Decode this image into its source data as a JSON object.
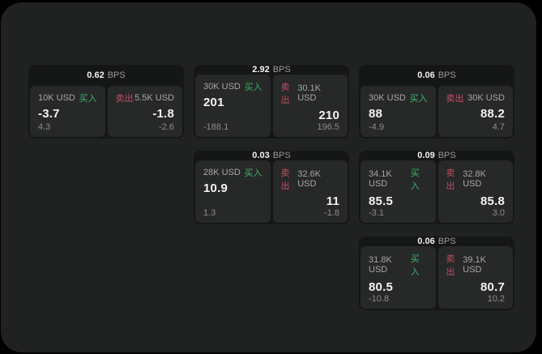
{
  "page": {
    "outer_bg": "#000000",
    "panel_bg": "#202121",
    "card_bg": "#151616",
    "tile_bg": "#272828"
  },
  "colors": {
    "buy": "#3db36a",
    "sell": "#c34d63",
    "value_text": "#f2f2f2",
    "label_text": "#a6a6a6",
    "delta_text": "#8c8c8c"
  },
  "labels": {
    "bps_suffix": "BPS",
    "buy": "买入",
    "sell": "卖出"
  },
  "cards": [
    {
      "col": 0,
      "row": 0,
      "bps": "0.62",
      "buy": {
        "amount": "10K USD",
        "price": "-3.7",
        "delta": "4.3"
      },
      "sell": {
        "amount": "5.5K USD",
        "price": "-1.8",
        "delta": "-2.6"
      }
    },
    {
      "col": 1,
      "row": 0,
      "bps": "2.92",
      "buy": {
        "amount": "30K USD",
        "price": "201",
        "delta": "-188.1"
      },
      "sell": {
        "amount": "30.1K USD",
        "price": "210",
        "delta": "196.5"
      }
    },
    {
      "col": 2,
      "row": 0,
      "bps": "0.06",
      "buy": {
        "amount": "30K USD",
        "price": "88",
        "delta": "-4.9"
      },
      "sell": {
        "amount": "30K USD",
        "price": "88.2",
        "delta": "4.7"
      }
    },
    {
      "col": 1,
      "row": 1,
      "bps": "0.03",
      "buy": {
        "amount": "28K USD",
        "price": "10.9",
        "delta": "1.3"
      },
      "sell": {
        "amount": "32.6K USD",
        "price": "11",
        "delta": "-1.8"
      }
    },
    {
      "col": 2,
      "row": 1,
      "bps": "0.09",
      "buy": {
        "amount": "34.1K USD",
        "price": "85.5",
        "delta": "-3.1"
      },
      "sell": {
        "amount": "32.8K USD",
        "price": "85.8",
        "delta": "3.0"
      }
    },
    {
      "col": 2,
      "row": 2,
      "bps": "0.06",
      "buy": {
        "amount": "31.8K USD",
        "price": "80.5",
        "delta": "-10.8"
      },
      "sell": {
        "amount": "39.1K USD",
        "price": "80.7",
        "delta": "10.2"
      }
    }
  ]
}
